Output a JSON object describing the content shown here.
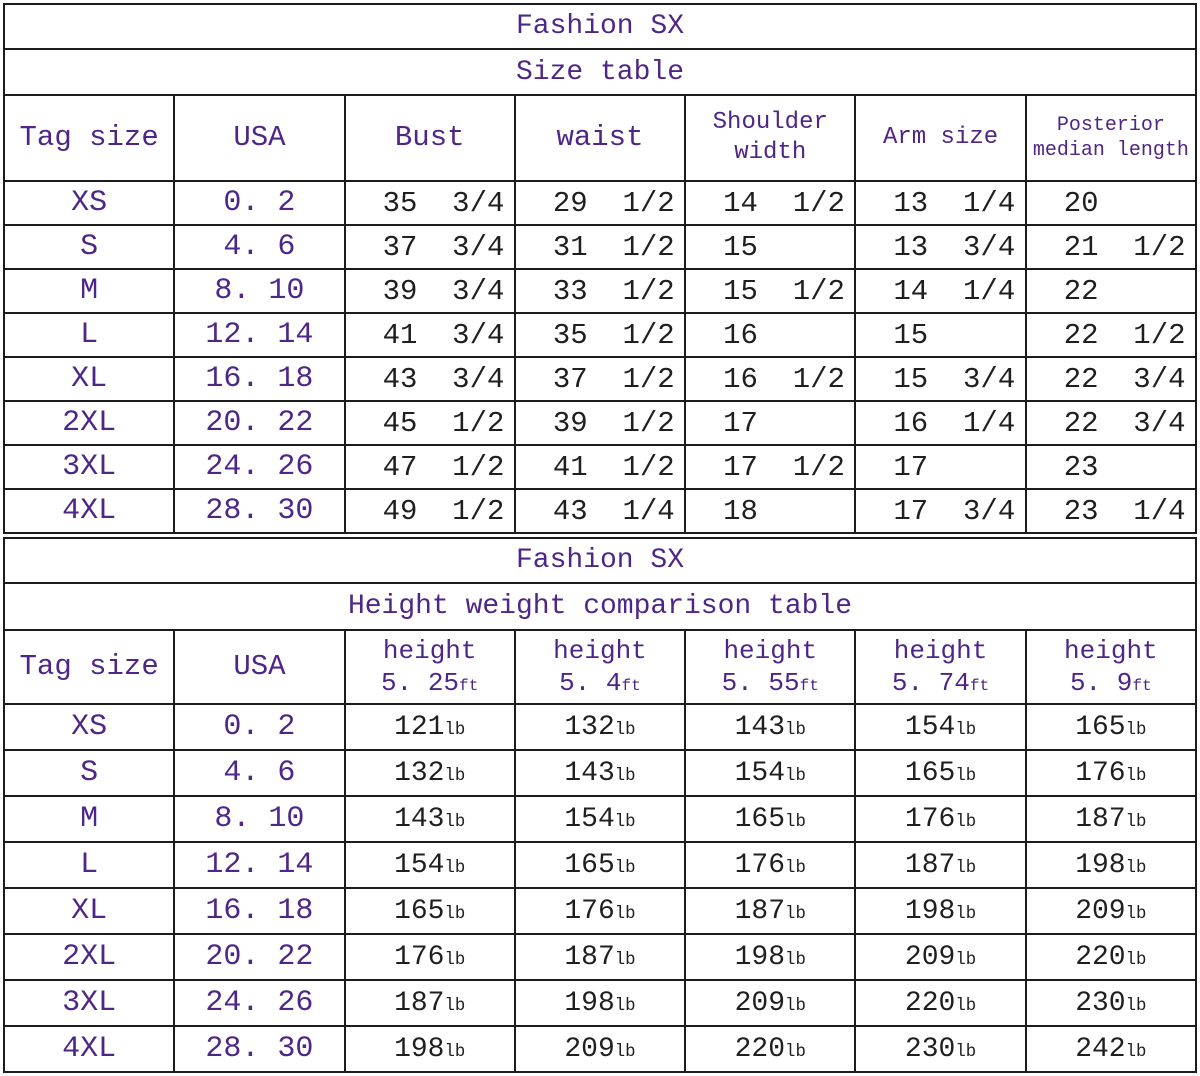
{
  "colors": {
    "accent_purple": "#4d2688",
    "measurement_text": "#1f1f1f",
    "grid_border": "#1c1c1c",
    "background": "#ffffff"
  },
  "tables": [
    {
      "id": "size-table",
      "brand": "Fashion SX",
      "title": "Size table",
      "columns": [
        {
          "label": "Tag size"
        },
        {
          "label": "USA"
        },
        {
          "label": "Bust"
        },
        {
          "label": "waist"
        },
        {
          "label": "Shoulder width"
        },
        {
          "label": "Arm size"
        },
        {
          "label": "Posterior median length"
        }
      ],
      "rows": [
        [
          "XS",
          "0. 2",
          "35  3/4",
          "29  1/2",
          "14  1/2",
          "13  1/4",
          "20"
        ],
        [
          "S",
          "4. 6",
          "37  3/4",
          "31  1/2",
          "15",
          "13  3/4",
          "21  1/2"
        ],
        [
          "M",
          "8. 10",
          "39  3/4",
          "33  1/2",
          "15  1/2",
          "14  1/4",
          "22"
        ],
        [
          "L",
          "12. 14",
          "41  3/4",
          "35  1/2",
          "16",
          "15",
          "22  1/2"
        ],
        [
          "XL",
          "16. 18",
          "43  3/4",
          "37  1/2",
          "16  1/2",
          "15  3/4",
          "22  3/4"
        ],
        [
          "2XL",
          "20. 22",
          "45  1/2",
          "39  1/2",
          "17",
          "16  1/4",
          "22  3/4"
        ],
        [
          "3XL",
          "24. 26",
          "47  1/2",
          "41  1/2",
          "17  1/2",
          "17",
          "23"
        ],
        [
          "4XL",
          "28. 30",
          "49  1/2",
          "43  1/4",
          "18",
          "17  3/4",
          "23  1/4"
        ]
      ]
    },
    {
      "id": "weight-table",
      "brand": "Fashion SX",
      "title": "Height weight comparison table",
      "columns": [
        {
          "label": "Tag size"
        },
        {
          "label": "USA"
        },
        {
          "label": "height",
          "value": "5. 25",
          "unit": "ft"
        },
        {
          "label": "height",
          "value": "5. 4",
          "unit": "ft"
        },
        {
          "label": "height",
          "value": "5. 55",
          "unit": "ft"
        },
        {
          "label": "height",
          "value": "5. 74",
          "unit": "ft"
        },
        {
          "label": "height",
          "value": "5. 9",
          "unit": "ft"
        }
      ],
      "rows": [
        [
          "XS",
          "0. 2",
          {
            "value": "121",
            "unit": "lb"
          },
          {
            "value": "132",
            "unit": "lb"
          },
          {
            "value": "143",
            "unit": "lb"
          },
          {
            "value": "154",
            "unit": "lb"
          },
          {
            "value": "165",
            "unit": "lb"
          }
        ],
        [
          "S",
          "4. 6",
          {
            "value": "132",
            "unit": "lb"
          },
          {
            "value": "143",
            "unit": "lb"
          },
          {
            "value": "154",
            "unit": "lb"
          },
          {
            "value": "165",
            "unit": "lb"
          },
          {
            "value": "176",
            "unit": "lb"
          }
        ],
        [
          "M",
          "8. 10",
          {
            "value": "143",
            "unit": "lb"
          },
          {
            "value": "154",
            "unit": "lb"
          },
          {
            "value": "165",
            "unit": "lb"
          },
          {
            "value": "176",
            "unit": "lb"
          },
          {
            "value": "187",
            "unit": "lb"
          }
        ],
        [
          "L",
          "12. 14",
          {
            "value": "154",
            "unit": "lb"
          },
          {
            "value": "165",
            "unit": "lb"
          },
          {
            "value": "176",
            "unit": "lb"
          },
          {
            "value": "187",
            "unit": "lb"
          },
          {
            "value": "198",
            "unit": "lb"
          }
        ],
        [
          "XL",
          "16. 18",
          {
            "value": "165",
            "unit": "lb"
          },
          {
            "value": "176",
            "unit": "lb"
          },
          {
            "value": "187",
            "unit": "lb"
          },
          {
            "value": "198",
            "unit": "lb"
          },
          {
            "value": "209",
            "unit": "lb"
          }
        ],
        [
          "2XL",
          "20. 22",
          {
            "value": "176",
            "unit": "lb"
          },
          {
            "value": "187",
            "unit": "lb"
          },
          {
            "value": "198",
            "unit": "lb"
          },
          {
            "value": "209",
            "unit": "lb"
          },
          {
            "value": "220",
            "unit": "lb"
          }
        ],
        [
          "3XL",
          "24. 26",
          {
            "value": "187",
            "unit": "lb"
          },
          {
            "value": "198",
            "unit": "lb"
          },
          {
            "value": "209",
            "unit": "lb"
          },
          {
            "value": "220",
            "unit": "lb"
          },
          {
            "value": "230",
            "unit": "lb"
          }
        ],
        [
          "4XL",
          "28. 30",
          {
            "value": "198",
            "unit": "lb"
          },
          {
            "value": "209",
            "unit": "lb"
          },
          {
            "value": "220",
            "unit": "lb"
          },
          {
            "value": "230",
            "unit": "lb"
          },
          {
            "value": "242",
            "unit": "lb"
          }
        ]
      ]
    }
  ]
}
